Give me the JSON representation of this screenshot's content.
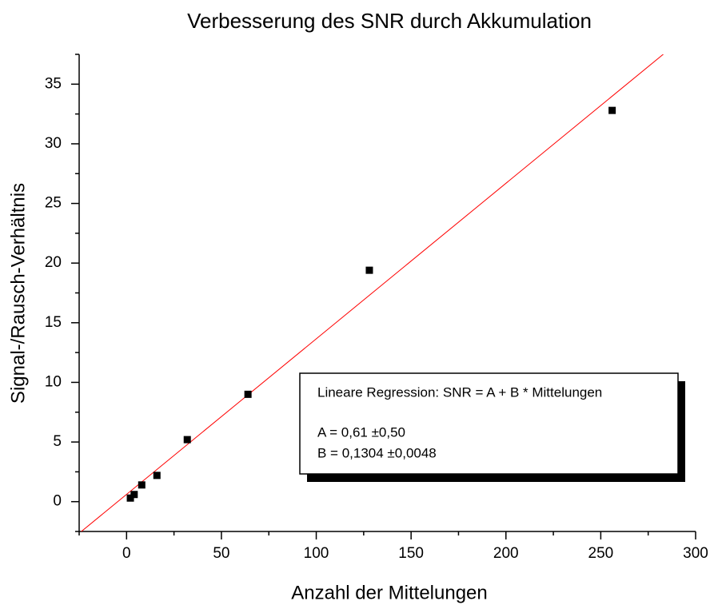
{
  "chart_data": {
    "type": "scatter",
    "title": "Verbesserung des SNR durch Akkumulation",
    "xlabel": "Anzahl der Mittelungen",
    "ylabel": "Signal-/Rausch-Verhältnis",
    "series": [
      {
        "name": "SNR",
        "color": "#000000",
        "x": [
          2,
          4,
          8,
          16,
          32,
          64,
          128,
          256
        ],
        "values": [
          0.3,
          0.6,
          1.4,
          2.2,
          5.2,
          9.0,
          19.4,
          32.8
        ]
      }
    ],
    "fit": {
      "a": 0.61,
      "b": 0.1304,
      "color": "#ff0000"
    },
    "annotation": [
      "Lineare Regression: SNR = A + B * Mittelungen",
      "A = 0,61 ±0,50",
      "B = 0,1304 ±0,0048"
    ],
    "xlim": [
      -25,
      300
    ],
    "xticks": [
      0,
      50,
      100,
      150,
      200,
      250,
      300
    ],
    "xminorticks": [
      -25,
      25,
      75,
      125,
      175,
      225,
      275
    ],
    "ylim": [
      -2.5,
      37.5
    ],
    "yticks": [
      0,
      5,
      10,
      15,
      20,
      25,
      30,
      35
    ],
    "yminorticks": [
      -2.5,
      2.5,
      7.5,
      12.5,
      17.5,
      22.5,
      27.5,
      32.5,
      37.5
    ]
  }
}
